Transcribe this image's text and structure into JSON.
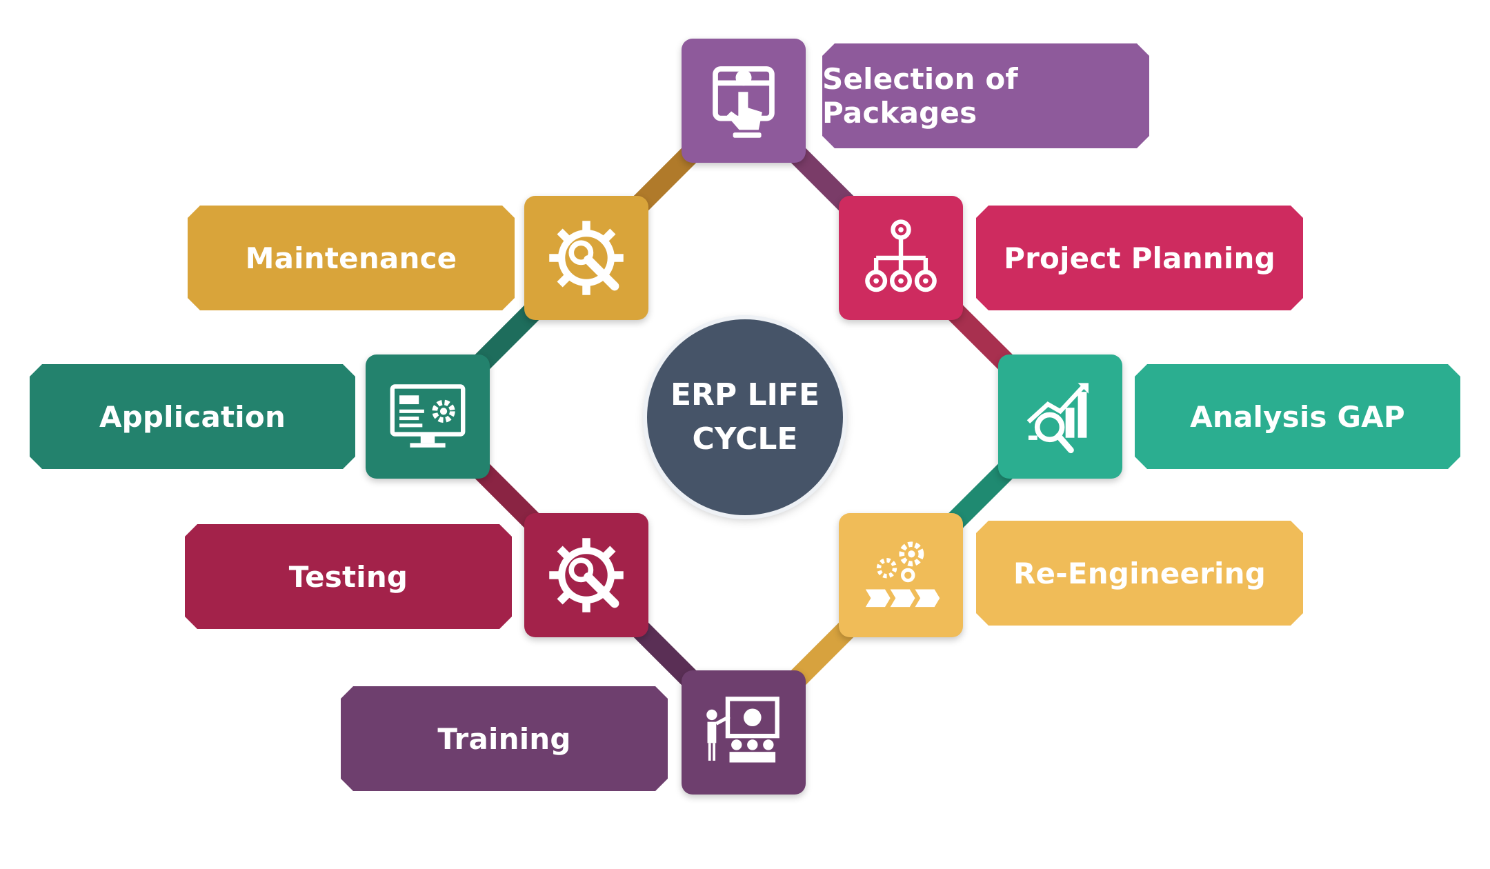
{
  "center": {
    "line1": "ERP LIFE",
    "line2": "CYCLE"
  },
  "stages": [
    {
      "key": "selection",
      "label": "Selection of Packages",
      "color": "#8E5A9B",
      "icon": "touch-selection-icon"
    },
    {
      "key": "planning",
      "label": "Project Planning",
      "color": "#CE2B5F",
      "icon": "hierarchy-chart-icon"
    },
    {
      "key": "gap",
      "label": "Analysis GAP",
      "color": "#2BAE90",
      "icon": "analysis-chart-magnifier-icon"
    },
    {
      "key": "reengineering",
      "label": "Re-Engineering",
      "color": "#F0BC58",
      "icon": "gears-process-icon"
    },
    {
      "key": "training",
      "label": "Training",
      "color": "#6E3F6E",
      "icon": "presentation-icon"
    },
    {
      "key": "testing",
      "label": "Testing",
      "color": "#A3224A",
      "icon": "gear-wrench-icon"
    },
    {
      "key": "application",
      "label": "Application",
      "color": "#23826D",
      "icon": "monitor-gear-icon"
    },
    {
      "key": "maintenance",
      "label": "Maintenance",
      "color": "#D9A43A",
      "icon": "gear-wrench-icon"
    }
  ],
  "connector_colors": [
    "#B07A2A",
    "#7A3C68",
    "#A8304F",
    "#1F8A71",
    "#D7A23E",
    "#5A2F55",
    "#8A2443",
    "#1E6D5C"
  ]
}
